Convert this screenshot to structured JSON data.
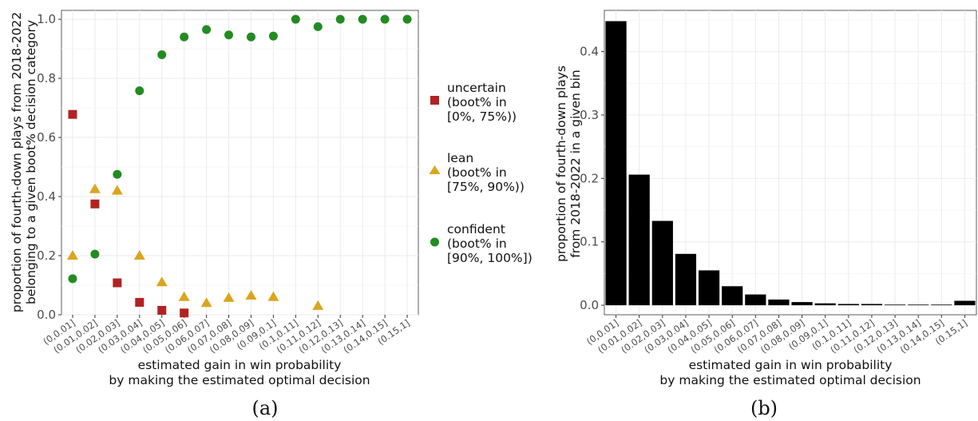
{
  "chart_data": [
    {
      "type": "scatter",
      "panel_label": "(a)",
      "categories": [
        "(0,0.01]",
        "(0.01,0.02]",
        "(0.02,0.03]",
        "(0.03,0.04]",
        "(0.04,0.05]",
        "(0.05,0.06]",
        "(0.06,0.07]",
        "(0.07,0.08]",
        "(0.08,0.09]",
        "(0.09,0.1]",
        "(0.1,0.11]",
        "(0.11,0.12]",
        "(0.12,0.13]",
        "(0.13,0.14]",
        "(0.14,0.15]",
        "(0.15,1]"
      ],
      "xlabel": [
        "estimated gain in win probability",
        "by making the estimated optimal decision"
      ],
      "ylabel": [
        "proportion of fourth-down plays from 2018-2022",
        "belonging to a given boot% decision category"
      ],
      "ylim": [
        0,
        1.03
      ],
      "yticks": [
        "0.0",
        "0.2",
        "0.4",
        "0.6",
        "0.8",
        "1.0"
      ],
      "grid": true,
      "legend_position": "right",
      "series": [
        {
          "name": [
            "uncertain",
            "(boot% in",
            "[0%, 75%))"
          ],
          "marker": "square",
          "color": "#b22222",
          "values": [
            0.678,
            0.375,
            0.108,
            0.042,
            0.015,
            0.006,
            null,
            null,
            null,
            null,
            null,
            null,
            null,
            null,
            null,
            null
          ]
        },
        {
          "name": [
            "lean",
            "(boot% in",
            "[75%, 90%))"
          ],
          "marker": "triangle",
          "color": "#daa520",
          "values": [
            0.2,
            0.425,
            0.42,
            0.2,
            0.11,
            0.06,
            0.04,
            0.057,
            0.065,
            0.06,
            null,
            0.03,
            null,
            null,
            null,
            null
          ]
        },
        {
          "name": [
            "confident",
            "(boot% in",
            "[90%, 100%])"
          ],
          "marker": "circle",
          "color": "#228b22",
          "values": [
            0.122,
            0.205,
            0.475,
            0.758,
            0.88,
            0.94,
            0.965,
            0.947,
            0.94,
            0.943,
            1.0,
            0.975,
            1.0,
            1.0,
            1.0,
            1.0
          ]
        }
      ]
    },
    {
      "type": "bar",
      "panel_label": "(b)",
      "categories": [
        "(0,0.01]",
        "(0.01,0.02]",
        "(0.02,0.03]",
        "(0.03,0.04]",
        "(0.04,0.05]",
        "(0.05,0.06]",
        "(0.06,0.07]",
        "(0.07,0.08]",
        "(0.08,0.09]",
        "(0.09,0.1]",
        "(0.1,0.11]",
        "(0.11,0.12]",
        "(0.12,0.13]",
        "(0.13,0.14]",
        "(0.14,0.15]",
        "(0.15,1]"
      ],
      "values": [
        0.448,
        0.206,
        0.133,
        0.081,
        0.055,
        0.03,
        0.017,
        0.009,
        0.005,
        0.003,
        0.002,
        0.002,
        0.001,
        0.001,
        0.001,
        0.007
      ],
      "color": "#000000",
      "xlabel": [
        "estimated gain in win probability",
        "by making the estimated optimal decision"
      ],
      "ylabel": [
        "proportion of fourth-down plays",
        "from 2018-2022 in a given bin"
      ],
      "ylim": [
        -0.015,
        0.465
      ],
      "yticks": [
        "0.0",
        "0.1",
        "0.2",
        "0.3",
        "0.4"
      ],
      "grid": true
    }
  ]
}
